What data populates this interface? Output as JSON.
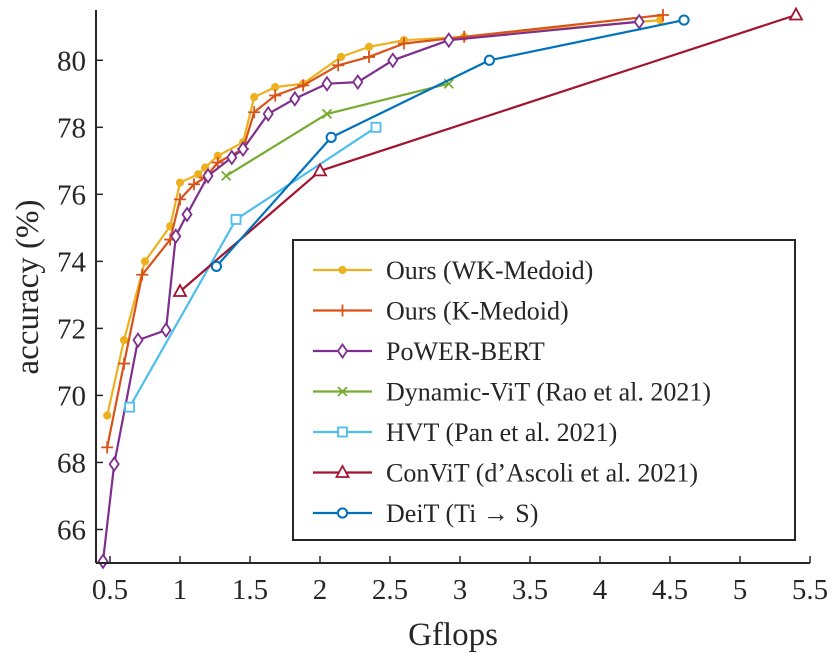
{
  "chart_data": {
    "type": "line",
    "title": "",
    "xlabel": "Gflops",
    "ylabel": "accuracy (%)",
    "xlim": [
      0.4,
      5.5
    ],
    "ylim": [
      65,
      81.5
    ],
    "xticks": [
      0.5,
      1,
      1.5,
      2,
      2.5,
      3,
      3.5,
      4,
      4.5,
      5,
      5.5
    ],
    "xtick_labels": [
      "0.5",
      "1",
      "1.5",
      "2",
      "2.5",
      "3",
      "3.5",
      "4",
      "4.5",
      "5",
      "5.5"
    ],
    "yticks": [
      66,
      68,
      70,
      72,
      74,
      76,
      78,
      80
    ],
    "ytick_labels": [
      "66",
      "68",
      "70",
      "72",
      "74",
      "76",
      "78",
      "80"
    ],
    "legend_position": "lower-right",
    "series": [
      {
        "name": "Ours (WK-Medoid)",
        "color": "#EDB120",
        "marker": "dot",
        "x": [
          0.48,
          0.6,
          0.75,
          0.93,
          1.0,
          1.13,
          1.18,
          1.27,
          1.45,
          1.53,
          1.68,
          1.88,
          2.15,
          2.35,
          2.6,
          3.03,
          4.43
        ],
        "y": [
          69.4,
          71.65,
          74.0,
          75.05,
          76.35,
          76.6,
          76.8,
          77.15,
          77.55,
          78.9,
          79.2,
          79.3,
          80.1,
          80.4,
          80.6,
          80.7,
          81.2
        ]
      },
      {
        "name": "Ours (K-Medoid)",
        "color": "#D95319",
        "marker": "plus",
        "x": [
          0.48,
          0.6,
          0.73,
          0.93,
          1.0,
          1.1,
          1.18,
          1.27,
          1.45,
          1.53,
          1.68,
          1.88,
          2.13,
          2.35,
          2.6,
          3.03,
          4.45
        ],
        "y": [
          68.45,
          70.95,
          73.6,
          74.65,
          75.85,
          76.3,
          76.5,
          76.95,
          77.35,
          78.45,
          78.95,
          79.25,
          79.85,
          80.1,
          80.5,
          80.7,
          81.35
        ]
      },
      {
        "name": "PoWER-BERT",
        "color": "#7E2F8E",
        "marker": "diamond",
        "x": [
          0.45,
          0.53,
          0.7,
          0.9,
          0.97,
          1.05,
          1.2,
          1.37,
          1.45,
          1.63,
          1.82,
          2.05,
          2.27,
          2.52,
          2.92,
          4.28
        ],
        "y": [
          65.05,
          67.95,
          71.65,
          71.95,
          74.75,
          75.4,
          76.55,
          77.1,
          77.35,
          78.4,
          78.85,
          79.3,
          79.35,
          80.0,
          80.6,
          81.15
        ]
      },
      {
        "name": "Dynamic-ViT (Rao et al. 2021)",
        "color": "#77AC30",
        "marker": "cross",
        "x": [
          1.33,
          2.05,
          2.92
        ],
        "y": [
          76.55,
          78.4,
          79.3
        ]
      },
      {
        "name": "HVT (Pan et al. 2021)",
        "color": "#4DBEEE",
        "marker": "square",
        "x": [
          0.64,
          1.4,
          2.4
        ],
        "y": [
          69.65,
          75.25,
          78.0
        ]
      },
      {
        "name": "ConViT (d’Ascoli et al. 2021)",
        "color": "#A2142F",
        "marker": "triangle",
        "x": [
          1.0,
          2.0,
          5.4
        ],
        "y": [
          73.1,
          76.7,
          81.35
        ]
      },
      {
        "name": "DeiT (Ti → S)",
        "color": "#0072BD",
        "marker": "circle",
        "x": [
          1.26,
          2.08,
          3.21,
          4.6
        ],
        "y": [
          73.85,
          77.7,
          80.0,
          81.2
        ]
      }
    ]
  }
}
